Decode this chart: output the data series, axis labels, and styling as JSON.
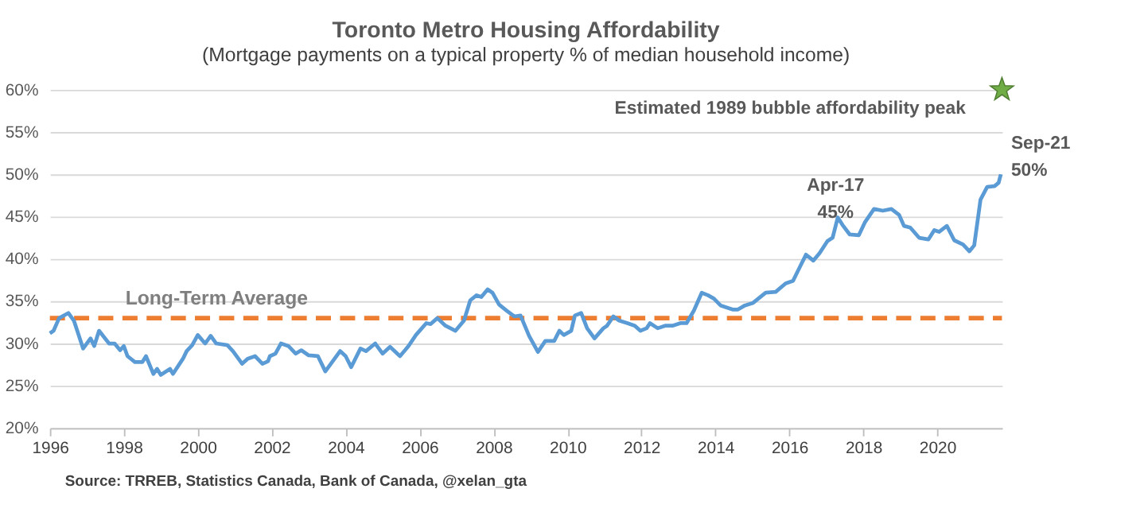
{
  "chart_data": {
    "type": "line",
    "title": "Toronto Metro Housing Affordability",
    "subtitle": "(Mortgage payments on a typical property % of median household income)",
    "xlim": [
      1996,
      2021.75
    ],
    "xticks": [
      1996,
      1998,
      2000,
      2002,
      2004,
      2006,
      2008,
      2010,
      2012,
      2014,
      2016,
      2018,
      2020
    ],
    "ylim": [
      20,
      60
    ],
    "yticks": [
      {
        "value": 20,
        "label": "20%"
      },
      {
        "value": 25,
        "label": "25%"
      },
      {
        "value": 30,
        "label": "30%"
      },
      {
        "value": 35,
        "label": "35%"
      },
      {
        "value": 40,
        "label": "40%"
      },
      {
        "value": 45,
        "label": "45%"
      },
      {
        "value": 50,
        "label": "50%"
      },
      {
        "value": 55,
        "label": "55%"
      },
      {
        "value": 60,
        "label": "60%"
      }
    ],
    "grid": "y",
    "series": [
      {
        "color": "#5b9bd5",
        "marker": "none",
        "line_style": "solid",
        "x": [
          1996.0,
          1996.1,
          1996.25,
          1996.5,
          1996.65,
          1996.9,
          1997.1,
          1997.2,
          1997.33,
          1997.6,
          1997.75,
          1997.9,
          1998.0,
          1998.1,
          1998.3,
          1998.5,
          1998.6,
          1998.8,
          1998.9,
          1999.0,
          1999.25,
          1999.33,
          1999.6,
          1999.7,
          1999.85,
          2000.0,
          2000.2,
          2000.35,
          2000.5,
          2000.8,
          2000.95,
          2001.1,
          2001.2,
          2001.35,
          2001.55,
          2001.75,
          2001.9,
          2001.95,
          2002.1,
          2002.25,
          2002.45,
          2002.65,
          2002.8,
          2003.0,
          2003.25,
          2003.45,
          2003.65,
          2003.85,
          2004.0,
          2004.15,
          2004.4,
          2004.55,
          2004.8,
          2005.0,
          2005.2,
          2005.47,
          2005.7,
          2005.9,
          2006.18,
          2006.3,
          2006.48,
          2006.7,
          2006.97,
          2007.2,
          2007.37,
          2007.54,
          2007.67,
          2007.84,
          2007.97,
          2008.15,
          2008.35,
          2008.56,
          2008.73,
          2008.96,
          2009.2,
          2009.4,
          2009.64,
          2009.78,
          2009.9,
          2010.1,
          2010.2,
          2010.37,
          2010.53,
          2010.73,
          2010.97,
          2011.07,
          2011.24,
          2011.4,
          2011.62,
          2011.82,
          2011.97,
          2012.14,
          2012.23,
          2012.44,
          2012.64,
          2012.84,
          2013.05,
          2013.22,
          2013.42,
          2013.63,
          2013.8,
          2013.96,
          2014.14,
          2014.48,
          2014.6,
          2014.8,
          2015.02,
          2015.36,
          2015.63,
          2015.9,
          2016.1,
          2016.29,
          2016.45,
          2016.65,
          2016.82,
          2017.03,
          2017.17,
          2017.31,
          2017.44,
          2017.63,
          2017.88,
          2018.04,
          2018.29,
          2018.53,
          2018.76,
          2018.97,
          2019.1,
          2019.27,
          2019.51,
          2019.76,
          2019.92,
          2020.05,
          2020.26,
          2020.46,
          2020.7,
          2020.87,
          2021.0,
          2021.17,
          2021.35,
          2021.55,
          2021.66,
          2021.72
        ],
        "values": [
          31.2,
          31.5,
          33.0,
          33.6,
          32.7,
          29.4,
          30.6,
          29.7,
          31.5,
          30.0,
          30.0,
          29.2,
          29.7,
          28.5,
          27.8,
          27.8,
          28.5,
          26.4,
          27.0,
          26.3,
          27.0,
          26.4,
          28.2,
          29.1,
          29.8,
          31.0,
          30.0,
          30.9,
          30.0,
          29.8,
          29.1,
          28.2,
          27.6,
          28.2,
          28.5,
          27.6,
          27.9,
          28.5,
          28.8,
          30.0,
          29.7,
          28.8,
          29.2,
          28.6,
          28.5,
          26.7,
          27.9,
          29.1,
          28.5,
          27.2,
          29.4,
          29.1,
          30.0,
          28.8,
          29.6,
          28.5,
          29.7,
          31.0,
          32.4,
          32.3,
          33.0,
          32.1,
          31.5,
          32.7,
          35.1,
          35.7,
          35.5,
          36.4,
          36.0,
          34.6,
          33.9,
          33.2,
          33.3,
          30.9,
          29.0,
          30.3,
          30.3,
          31.5,
          31.0,
          31.5,
          33.3,
          33.6,
          31.8,
          30.6,
          31.8,
          32.1,
          33.2,
          32.7,
          32.4,
          32.1,
          31.5,
          31.8,
          32.4,
          31.8,
          32.1,
          32.1,
          32.4,
          32.4,
          33.9,
          36.0,
          35.7,
          35.3,
          34.5,
          34.0,
          34.0,
          34.5,
          34.8,
          36.0,
          36.1,
          37.1,
          37.4,
          39.1,
          40.5,
          39.8,
          40.7,
          42.1,
          42.5,
          44.9,
          44.0,
          42.9,
          42.8,
          44.3,
          45.9,
          45.7,
          45.9,
          45.2,
          43.9,
          43.7,
          42.5,
          42.3,
          43.4,
          43.2,
          43.9,
          42.2,
          41.7,
          40.9,
          41.6,
          47.0,
          48.5,
          48.6,
          49.0,
          50.0
        ]
      },
      {
        "type": "scatter",
        "color": "#70ad47",
        "marker": "star",
        "x": [
          2021.75
        ],
        "values": [
          60
        ]
      }
    ],
    "ref_lines": [
      {
        "axis": "y",
        "value": 33,
        "label": "Long-Term Average",
        "color": "#ed7d31",
        "line_style": "dashed"
      }
    ],
    "annotations": [
      {
        "text": "Apr-17\n45%",
        "x": 2017.25,
        "y": 45
      },
      {
        "text": "Sep-21\n50%",
        "x": 2021.67,
        "y": 50
      },
      {
        "text": "Estimated 1989 bubble affordability peak",
        "x": 2021.75,
        "y": 60
      },
      "Source: TRREB, Statistics Canada, Bank of Canada, @xelan_gta"
    ]
  }
}
